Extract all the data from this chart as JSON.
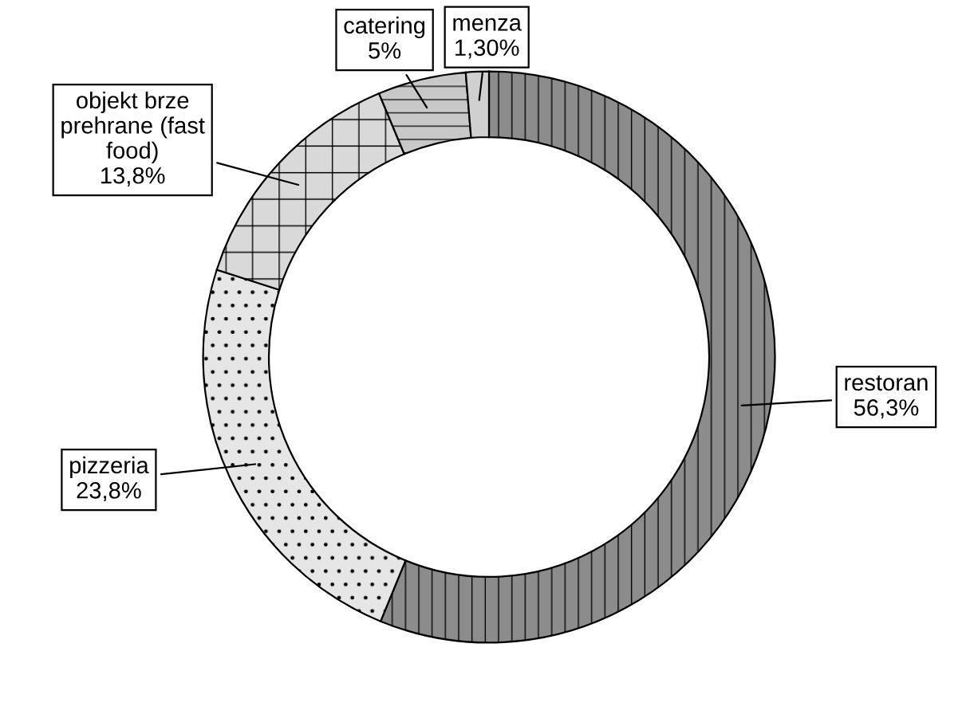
{
  "chart_data": {
    "type": "donut",
    "categories": [
      "restoran",
      "pizzeria",
      "objekt brze\nprehrane (fast\nfood)",
      "catering",
      "menza"
    ],
    "values": [
      56.3,
      23.8,
      13.8,
      5,
      1.3
    ],
    "value_labels": [
      "56,3%",
      "23,8%",
      "13,8%",
      "5%",
      "1,30%"
    ],
    "colors": [
      "#8c8c8c",
      "#e6e6e6",
      "#d9d9d9",
      "#c8c8c8",
      "#d0d0d0"
    ],
    "legend": false
  }
}
